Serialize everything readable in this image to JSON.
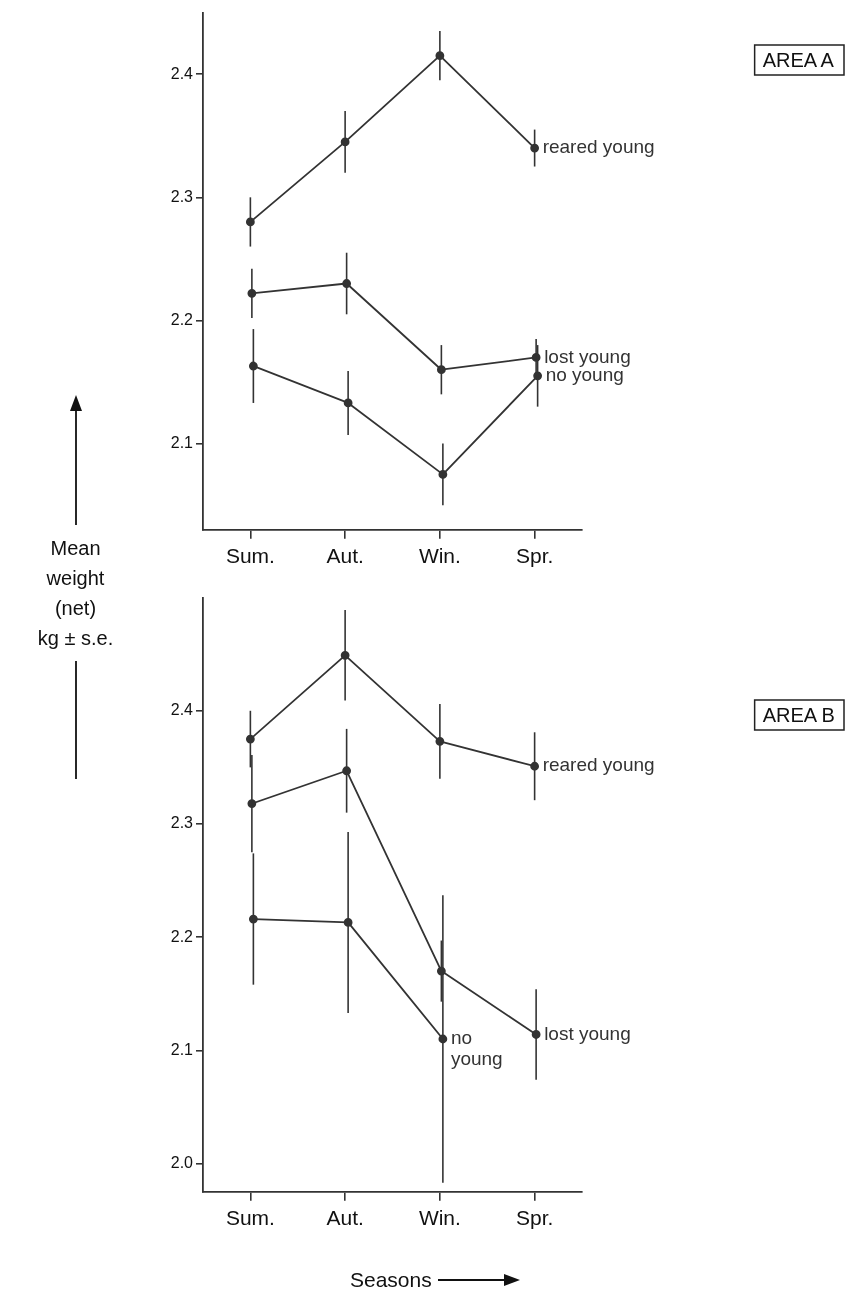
{
  "chart_data": [
    {
      "type": "line",
      "annotations": [
        "AREA A"
      ],
      "ylabel": "Mean\nweight\n(net)\nkg ± s.e.",
      "categories": [
        "Sum.",
        "Aut.",
        "Win.",
        "Spr."
      ],
      "ylim": [
        2.03,
        2.45
      ],
      "yticks": [
        2.1,
        2.2,
        2.3,
        2.4
      ],
      "grid": false,
      "legend": false,
      "marker": "circle",
      "line_style": "solid",
      "series": [
        {
          "name": "reared young",
          "color": "#333333",
          "values": [
            2.28,
            2.345,
            2.415,
            2.34
          ],
          "errors": [
            0.02,
            0.025,
            0.02,
            0.015
          ]
        },
        {
          "name": "lost young",
          "color": "#333333",
          "values": [
            2.222,
            2.23,
            2.16,
            2.17
          ],
          "errors": [
            0.02,
            0.025,
            0.02,
            0.015
          ]
        },
        {
          "name": "no young",
          "color": "#333333",
          "values": [
            2.163,
            2.133,
            2.075,
            2.155
          ],
          "errors": [
            0.03,
            0.026,
            0.025,
            0.025
          ]
        }
      ]
    },
    {
      "type": "line",
      "annotations": [
        "AREA B"
      ],
      "xlabel": "Seasons",
      "categories": [
        "Sum.",
        "Aut.",
        "Win.",
        "Spr."
      ],
      "ylim": [
        1.975,
        2.5
      ],
      "yticks": [
        {
          "value": 2,
          "label": "2.0"
        },
        2.1,
        2.2,
        2.3,
        2.4
      ],
      "grid": false,
      "legend": false,
      "marker": "circle",
      "line_style": "solid",
      "series": [
        {
          "name": "reared young",
          "color": "#333333",
          "values": [
            2.375,
            2.449,
            2.373,
            2.351
          ],
          "errors": [
            0.025,
            0.04,
            0.033,
            0.03
          ]
        },
        {
          "name": "lost young",
          "color": "#333333",
          "values": [
            2.318,
            2.347,
            2.17,
            2.114
          ],
          "errors": [
            0.043,
            0.037,
            0.027,
            0.04
          ]
        },
        {
          "name": "no young",
          "color": "#333333",
          "values": [
            2.216,
            2.213,
            2.11,
            null
          ],
          "errors": [
            0.058,
            0.08,
            0.127,
            null
          ]
        }
      ]
    }
  ]
}
